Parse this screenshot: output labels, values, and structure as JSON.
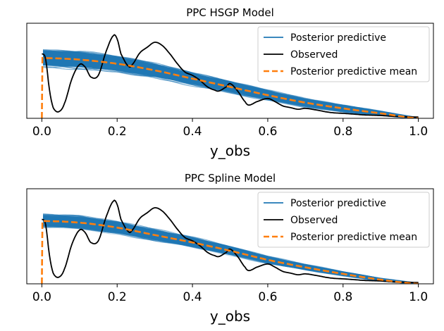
{
  "chart_data": [
    {
      "type": "line",
      "title": "PPC HSGP Model",
      "xlabel": "y_obs",
      "ylabel": "",
      "xlim": [
        -0.04,
        1.04
      ],
      "ylim": [
        0,
        1.15
      ],
      "xticks": [
        "0.0",
        "0.2",
        "0.4",
        "0.6",
        "0.8",
        "1.0"
      ],
      "xtick_values": [
        0.0,
        0.2,
        0.4,
        0.6,
        0.8,
        1.0
      ],
      "legend": {
        "position": "top-right",
        "entries": [
          {
            "label": "Posterior predictive",
            "color": "#1f77b4",
            "style": "solid"
          },
          {
            "label": "Observed",
            "color": "#000000",
            "style": "solid"
          },
          {
            "label": "Posterior predictive mean",
            "color": "#ff7f0e",
            "style": "dashed"
          }
        ]
      },
      "series": [
        {
          "name": "Observed",
          "x": [
            0.0,
            0.01,
            0.02,
            0.03,
            0.045,
            0.06,
            0.08,
            0.1,
            0.115,
            0.13,
            0.15,
            0.17,
            0.19,
            0.2,
            0.21,
            0.23,
            0.24,
            0.26,
            0.28,
            0.3,
            0.32,
            0.34,
            0.36,
            0.38,
            0.4,
            0.42,
            0.44,
            0.46,
            0.47,
            0.49,
            0.5,
            0.52,
            0.54,
            0.55,
            0.57,
            0.6,
            0.62,
            0.64,
            0.66,
            0.68,
            0.7,
            0.73,
            0.76,
            0.78,
            0.8,
            0.83,
            0.86,
            0.9,
            0.93,
            0.96,
            1.0
          ],
          "y": [
            0.78,
            0.72,
            0.35,
            0.13,
            0.08,
            0.18,
            0.48,
            0.65,
            0.62,
            0.5,
            0.52,
            0.8,
            1.0,
            0.96,
            0.78,
            0.63,
            0.65,
            0.79,
            0.86,
            0.92,
            0.88,
            0.78,
            0.66,
            0.56,
            0.52,
            0.46,
            0.38,
            0.34,
            0.33,
            0.38,
            0.42,
            0.33,
            0.2,
            0.16,
            0.2,
            0.24,
            0.2,
            0.15,
            0.13,
            0.11,
            0.12,
            0.1,
            0.075,
            0.065,
            0.06,
            0.05,
            0.04,
            0.035,
            0.025,
            0.02,
            0.015
          ]
        },
        {
          "name": "Posterior predictive mean",
          "x": [
            0.0,
            0.001,
            0.002,
            0.1,
            0.2,
            0.3,
            0.4,
            0.5,
            0.6,
            0.7,
            0.8,
            0.9,
            1.0
          ],
          "y": [
            0.0,
            0.55,
            0.73,
            0.71,
            0.66,
            0.58,
            0.48,
            0.38,
            0.28,
            0.19,
            0.12,
            0.06,
            0.0
          ],
          "band_half_width": [
            0.0,
            0.08,
            0.12,
            0.12,
            0.11,
            0.1,
            0.09,
            0.08,
            0.07,
            0.06,
            0.05,
            0.03,
            0.01
          ]
        }
      ]
    },
    {
      "type": "line",
      "title": "PPC Spline Model",
      "xlabel": "y_obs",
      "ylabel": "",
      "xlim": [
        -0.04,
        1.04
      ],
      "ylim": [
        0,
        1.15
      ],
      "xticks": [
        "0.0",
        "0.2",
        "0.4",
        "0.6",
        "0.8",
        "1.0"
      ],
      "xtick_values": [
        0.0,
        0.2,
        0.4,
        0.6,
        0.8,
        1.0
      ],
      "legend": {
        "position": "top-right",
        "entries": [
          {
            "label": "Posterior predictive",
            "color": "#1f77b4",
            "style": "solid"
          },
          {
            "label": "Observed",
            "color": "#000000",
            "style": "solid"
          },
          {
            "label": "Posterior predictive mean",
            "color": "#ff7f0e",
            "style": "dashed"
          }
        ]
      },
      "series": [
        {
          "name": "Observed",
          "x": [
            0.0,
            0.01,
            0.02,
            0.03,
            0.045,
            0.06,
            0.08,
            0.1,
            0.115,
            0.13,
            0.15,
            0.17,
            0.19,
            0.2,
            0.21,
            0.23,
            0.24,
            0.26,
            0.28,
            0.3,
            0.32,
            0.34,
            0.36,
            0.38,
            0.4,
            0.42,
            0.44,
            0.46,
            0.47,
            0.49,
            0.5,
            0.52,
            0.54,
            0.55,
            0.57,
            0.6,
            0.62,
            0.64,
            0.66,
            0.68,
            0.7,
            0.73,
            0.76,
            0.78,
            0.8,
            0.83,
            0.86,
            0.9,
            0.93,
            0.96,
            1.0
          ],
          "y": [
            0.78,
            0.72,
            0.35,
            0.13,
            0.08,
            0.18,
            0.48,
            0.65,
            0.62,
            0.5,
            0.52,
            0.8,
            1.0,
            0.96,
            0.78,
            0.63,
            0.65,
            0.79,
            0.86,
            0.92,
            0.88,
            0.78,
            0.66,
            0.56,
            0.52,
            0.46,
            0.38,
            0.34,
            0.33,
            0.38,
            0.42,
            0.33,
            0.2,
            0.16,
            0.2,
            0.24,
            0.2,
            0.15,
            0.13,
            0.11,
            0.12,
            0.1,
            0.075,
            0.065,
            0.06,
            0.05,
            0.04,
            0.035,
            0.025,
            0.02,
            0.015
          ]
        },
        {
          "name": "Posterior predictive mean",
          "x": [
            0.0,
            0.001,
            0.002,
            0.1,
            0.2,
            0.3,
            0.4,
            0.5,
            0.6,
            0.7,
            0.8,
            0.9,
            1.0
          ],
          "y": [
            0.0,
            0.55,
            0.76,
            0.74,
            0.68,
            0.59,
            0.5,
            0.4,
            0.29,
            0.2,
            0.12,
            0.05,
            0.0
          ],
          "band_half_width": [
            0.0,
            0.08,
            0.09,
            0.09,
            0.085,
            0.08,
            0.07,
            0.06,
            0.05,
            0.04,
            0.03,
            0.02,
            0.01
          ]
        }
      ]
    }
  ]
}
